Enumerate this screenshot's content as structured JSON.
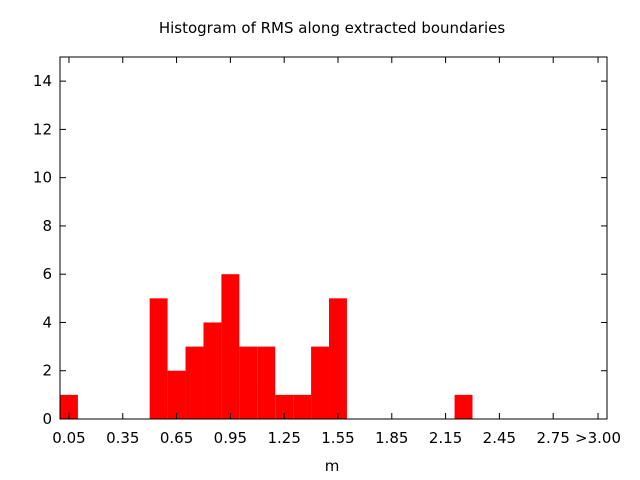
{
  "chart_data": {
    "type": "bar",
    "title": "Histogram of RMS along extracted boundaries",
    "xlabel": "m",
    "ylabel": "",
    "bin_width": 0.1,
    "xlim": [
      0.0,
      3.05
    ],
    "ylim": [
      0,
      15
    ],
    "xticks": [
      {
        "value": 0.05,
        "label": "0.05"
      },
      {
        "value": 0.35,
        "label": "0.35"
      },
      {
        "value": 0.65,
        "label": "0.65"
      },
      {
        "value": 0.95,
        "label": "0.95"
      },
      {
        "value": 1.25,
        "label": "1.25"
      },
      {
        "value": 1.55,
        "label": "1.55"
      },
      {
        "value": 1.85,
        "label": "1.85"
      },
      {
        "value": 2.15,
        "label": "2.15"
      },
      {
        "value": 2.45,
        "label": "2.45"
      },
      {
        "value": 2.75,
        "label": "2.75"
      },
      {
        "value": 3.0,
        "label": ">3.00"
      }
    ],
    "yticks": [
      0,
      2,
      4,
      6,
      8,
      10,
      12,
      14
    ],
    "bins": [
      {
        "center": 0.05,
        "count": 1
      },
      {
        "center": 0.55,
        "count": 5
      },
      {
        "center": 0.65,
        "count": 2
      },
      {
        "center": 0.75,
        "count": 3
      },
      {
        "center": 0.85,
        "count": 4
      },
      {
        "center": 0.95,
        "count": 6
      },
      {
        "center": 1.05,
        "count": 3
      },
      {
        "center": 1.15,
        "count": 3
      },
      {
        "center": 1.25,
        "count": 1
      },
      {
        "center": 1.35,
        "count": 1
      },
      {
        "center": 1.45,
        "count": 3
      },
      {
        "center": 1.55,
        "count": 5
      },
      {
        "center": 2.25,
        "count": 1
      }
    ],
    "bar_color": "#ff0000",
    "grid": false,
    "legend": "none"
  }
}
